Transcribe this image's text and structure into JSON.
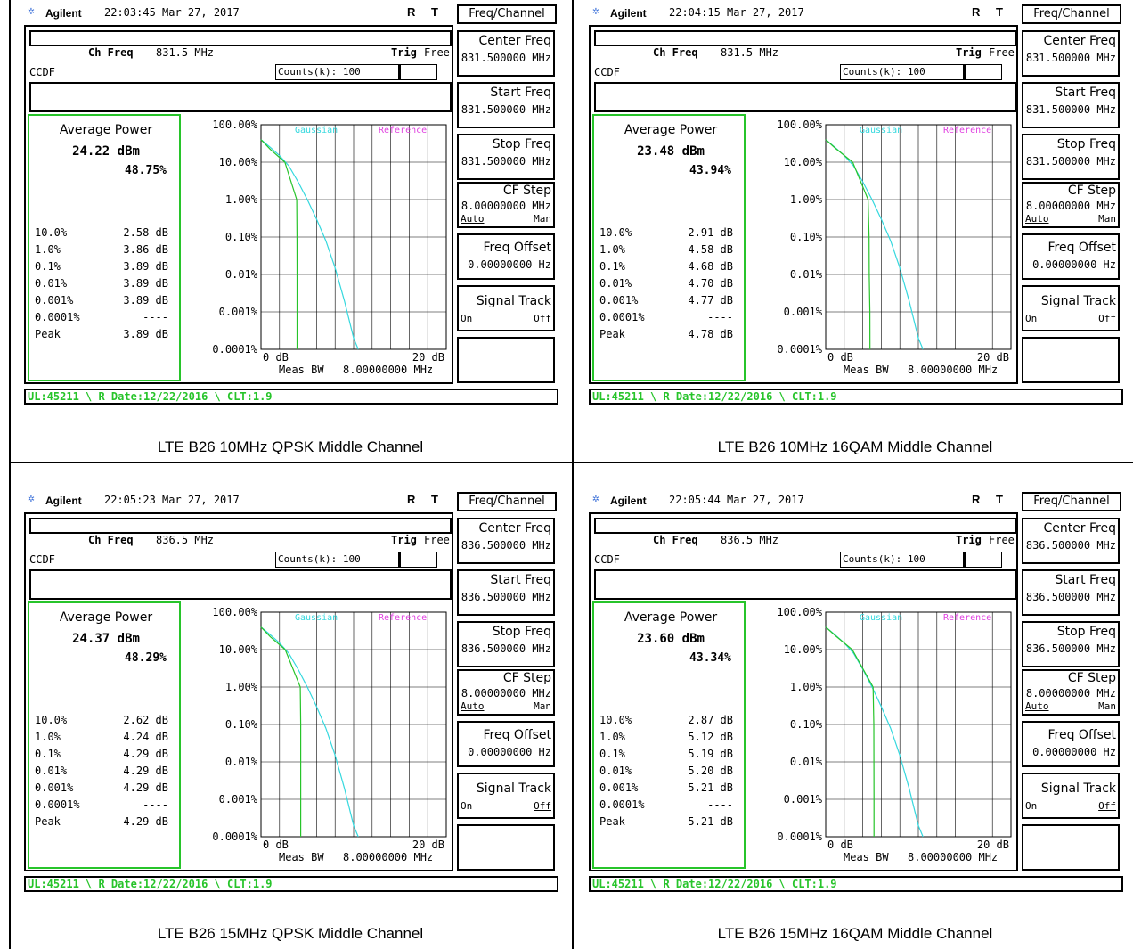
{
  "panels": [
    {
      "caption": "LTE B26 10MHz QPSK Middle Channel",
      "brand": "Agilent",
      "datetime": "22:03:45  Mar 27, 2017",
      "r": "R",
      "t": "T",
      "menu_title": "Freq/Channel",
      "ch_freq_label": "Ch Freq",
      "ch_freq": "831.5 MHz",
      "trig_label": "Trig",
      "trig_value": "Free",
      "mode": "CCDF",
      "counts": "Counts(k): 100",
      "avg_power_label": "Average Power",
      "avg_power": "24.22 dBm",
      "avg_pct": "48.75%",
      "stats": [
        {
          "k": "10.0%",
          "v": "2.58 dB"
        },
        {
          "k": "1.0%",
          "v": "3.86 dB"
        },
        {
          "k": "0.1%",
          "v": "3.89 dB"
        },
        {
          "k": "0.01%",
          "v": "3.89 dB"
        },
        {
          "k": "0.001%",
          "v": "3.89 dB"
        },
        {
          "k": "0.0001%",
          "v": "----"
        },
        {
          "k": "Peak",
          "v": "3.89 dB"
        }
      ],
      "softkeys": {
        "center_freq": "831.500000 MHz",
        "start_freq": "831.500000 MHz",
        "stop_freq": "831.500000 MHz",
        "cf_step": "8.00000000 MHz"
      },
      "status": "UL:45211 \\ R Date:12/22/2016 \\ CLT:1.9"
    },
    {
      "caption": "LTE B26 10MHz 16QAM Middle Channel",
      "brand": "Agilent",
      "datetime": "22:04:15  Mar 27, 2017",
      "r": "R",
      "t": "T",
      "menu_title": "Freq/Channel",
      "ch_freq_label": "Ch Freq",
      "ch_freq": "831.5 MHz",
      "trig_label": "Trig",
      "trig_value": "Free",
      "mode": "CCDF",
      "counts": "Counts(k): 100",
      "avg_power_label": "Average Power",
      "avg_power": "23.48 dBm",
      "avg_pct": "43.94%",
      "stats": [
        {
          "k": "10.0%",
          "v": "2.91 dB"
        },
        {
          "k": "1.0%",
          "v": "4.58 dB"
        },
        {
          "k": "0.1%",
          "v": "4.68 dB"
        },
        {
          "k": "0.01%",
          "v": "4.70 dB"
        },
        {
          "k": "0.001%",
          "v": "4.77 dB"
        },
        {
          "k": "0.0001%",
          "v": "----"
        },
        {
          "k": "Peak",
          "v": "4.78 dB"
        }
      ],
      "softkeys": {
        "center_freq": "831.500000 MHz",
        "start_freq": "831.500000 MHz",
        "stop_freq": "831.500000 MHz",
        "cf_step": "8.00000000 MHz"
      },
      "status": "UL:45211 \\ R Date:12/22/2016 \\ CLT:1.9"
    },
    {
      "caption": "LTE B26 15MHz QPSK Middle Channel",
      "brand": "Agilent",
      "datetime": "22:05:23  Mar 27, 2017",
      "r": "R",
      "t": "T",
      "menu_title": "Freq/Channel",
      "ch_freq_label": "Ch Freq",
      "ch_freq": "836.5 MHz",
      "trig_label": "Trig",
      "trig_value": "Free",
      "mode": "CCDF",
      "counts": "Counts(k): 100",
      "avg_power_label": "Average Power",
      "avg_power": "24.37 dBm",
      "avg_pct": "48.29%",
      "stats": [
        {
          "k": "10.0%",
          "v": "2.62 dB"
        },
        {
          "k": "1.0%",
          "v": "4.24 dB"
        },
        {
          "k": "0.1%",
          "v": "4.29 dB"
        },
        {
          "k": "0.01%",
          "v": "4.29 dB"
        },
        {
          "k": "0.001%",
          "v": "4.29 dB"
        },
        {
          "k": "0.0001%",
          "v": "----"
        },
        {
          "k": "Peak",
          "v": "4.29 dB"
        }
      ],
      "softkeys": {
        "center_freq": "836.500000 MHz",
        "start_freq": "836.500000 MHz",
        "stop_freq": "836.500000 MHz",
        "cf_step": "8.00000000 MHz"
      },
      "status": "UL:45211 \\ R Date:12/22/2016 \\ CLT:1.9"
    },
    {
      "caption": "LTE B26 15MHz 16QAM Middle Channel",
      "brand": "Agilent",
      "datetime": "22:05:44  Mar 27, 2017",
      "r": "R",
      "t": "T",
      "menu_title": "Freq/Channel",
      "ch_freq_label": "Ch Freq",
      "ch_freq": "836.5 MHz",
      "trig_label": "Trig",
      "trig_value": "Free",
      "mode": "CCDF",
      "counts": "Counts(k): 100",
      "avg_power_label": "Average Power",
      "avg_power": "23.60 dBm",
      "avg_pct": "43.34%",
      "stats": [
        {
          "k": "10.0%",
          "v": "2.87 dB"
        },
        {
          "k": "1.0%",
          "v": "5.12 dB"
        },
        {
          "k": "0.1%",
          "v": "5.19 dB"
        },
        {
          "k": "0.01%",
          "v": "5.20 dB"
        },
        {
          "k": "0.001%",
          "v": "5.21 dB"
        },
        {
          "k": "0.0001%",
          "v": "----"
        },
        {
          "k": "Peak",
          "v": "5.21 dB"
        }
      ],
      "softkeys": {
        "center_freq": "836.500000 MHz",
        "start_freq": "836.500000 MHz",
        "stop_freq": "836.500000 MHz",
        "cf_step": "8.00000000 MHz"
      },
      "status": "UL:45211 \\ R Date:12/22/2016 \\ CLT:1.9"
    }
  ],
  "softkey_labels": {
    "center_freq": "Center Freq",
    "start_freq": "Start Freq",
    "stop_freq": "Stop Freq",
    "cf_step": "CF Step",
    "cf_step_auto": "Auto",
    "cf_step_man": "Man",
    "freq_offset": "Freq Offset",
    "freq_offset_value": "0.00000000  Hz",
    "signal_track": "Signal Track",
    "signal_track_on": "On",
    "signal_track_off": "Off"
  },
  "chart_data": [
    {
      "type": "line",
      "y_scale": "log",
      "ylim_pct": [
        0.0001,
        100
      ],
      "xlim_db": [
        0,
        20
      ],
      "y_tick_labels": [
        "100.00%",
        "10.00%",
        "1.00%",
        "0.10%",
        "0.01%",
        "0.001%",
        "0.0001%"
      ],
      "x_tick_labels": [
        "0 dB",
        "20 dB"
      ],
      "x_label": "Meas BW",
      "x_label_value": "8.00000000 MHz",
      "legend": [
        "Gaussian",
        "Reference"
      ],
      "colors": {
        "gaussian": "#35d8de",
        "measured": "#27c42a",
        "legend_reference": "#e040e0",
        "grid": "#000000"
      },
      "series": [
        {
          "name": "Gaussian",
          "points": [
            [
              0,
              40
            ],
            [
              1,
              25
            ],
            [
              2,
              15
            ],
            [
              3,
              8
            ],
            [
              4,
              3
            ],
            [
              5,
              1
            ],
            [
              6,
              0.3
            ],
            [
              7,
              0.08
            ],
            [
              8,
              0.015
            ],
            [
              9,
              0.002
            ],
            [
              10,
              0.0002
            ],
            [
              10.5,
              0.0001
            ]
          ]
        },
        {
          "points": [
            [
              0,
              40
            ],
            [
              1,
              22
            ],
            [
              2.58,
              10
            ],
            [
              3.86,
              1
            ],
            [
              3.88,
              0.1
            ],
            [
              3.89,
              0.01
            ],
            [
              3.89,
              0.0001
            ]
          ]
        }
      ]
    },
    {
      "type": "line",
      "y_scale": "log",
      "ylim_pct": [
        0.0001,
        100
      ],
      "xlim_db": [
        0,
        20
      ],
      "y_tick_labels": [
        "100.00%",
        "10.00%",
        "1.00%",
        "0.10%",
        "0.01%",
        "0.001%",
        "0.0001%"
      ],
      "x_tick_labels": [
        "0 dB",
        "20 dB"
      ],
      "x_label": "Meas BW",
      "x_label_value": "8.00000000 MHz",
      "legend": [
        "Gaussian",
        "Reference"
      ],
      "colors": {
        "gaussian": "#35d8de",
        "measured": "#27c42a",
        "legend_reference": "#e040e0",
        "grid": "#000000"
      },
      "series": [
        {
          "name": "Gaussian",
          "points": [
            [
              0,
              40
            ],
            [
              1,
              25
            ],
            [
              2,
              15
            ],
            [
              3,
              8
            ],
            [
              4,
              3
            ],
            [
              5,
              1
            ],
            [
              6,
              0.3
            ],
            [
              7,
              0.08
            ],
            [
              8,
              0.015
            ],
            [
              9,
              0.002
            ],
            [
              10,
              0.0002
            ],
            [
              10.5,
              0.0001
            ]
          ]
        },
        {
          "points": [
            [
              0,
              40
            ],
            [
              1,
              24
            ],
            [
              2.91,
              10
            ],
            [
              4.58,
              1
            ],
            [
              4.68,
              0.1
            ],
            [
              4.7,
              0.01
            ],
            [
              4.77,
              0.001
            ],
            [
              4.78,
              0.0001
            ]
          ]
        }
      ]
    },
    {
      "type": "line",
      "y_scale": "log",
      "ylim_pct": [
        0.0001,
        100
      ],
      "xlim_db": [
        0,
        20
      ],
      "y_tick_labels": [
        "100.00%",
        "10.00%",
        "1.00%",
        "0.10%",
        "0.01%",
        "0.001%",
        "0.0001%"
      ],
      "x_tick_labels": [
        "0 dB",
        "20 dB"
      ],
      "x_label": "Meas BW",
      "x_label_value": "8.00000000 MHz",
      "legend": [
        "Gaussian",
        "Reference"
      ],
      "colors": {
        "gaussian": "#35d8de",
        "measured": "#27c42a",
        "legend_reference": "#e040e0",
        "grid": "#000000"
      },
      "series": [
        {
          "name": "Gaussian",
          "points": [
            [
              0,
              40
            ],
            [
              1,
              25
            ],
            [
              2,
              15
            ],
            [
              3,
              8
            ],
            [
              4,
              3
            ],
            [
              5,
              1
            ],
            [
              6,
              0.3
            ],
            [
              7,
              0.08
            ],
            [
              8,
              0.015
            ],
            [
              9,
              0.002
            ],
            [
              10,
              0.0002
            ],
            [
              10.5,
              0.0001
            ]
          ]
        },
        {
          "points": [
            [
              0,
              40
            ],
            [
              1,
              22
            ],
            [
              2.62,
              10
            ],
            [
              4.24,
              1
            ],
            [
              4.29,
              0.1
            ],
            [
              4.29,
              0.01
            ],
            [
              4.29,
              0.0001
            ]
          ]
        }
      ]
    },
    {
      "type": "line",
      "y_scale": "log",
      "ylim_pct": [
        0.0001,
        100
      ],
      "xlim_db": [
        0,
        20
      ],
      "y_tick_labels": [
        "100.00%",
        "10.00%",
        "1.00%",
        "0.10%",
        "0.01%",
        "0.001%",
        "0.0001%"
      ],
      "x_tick_labels": [
        "0 dB",
        "20 dB"
      ],
      "x_label": "Meas BW",
      "x_label_value": "8.00000000 MHz",
      "legend": [
        "Gaussian",
        "Reference"
      ],
      "colors": {
        "gaussian": "#35d8de",
        "measured": "#27c42a",
        "legend_reference": "#e040e0",
        "grid": "#000000"
      },
      "series": [
        {
          "name": "Gaussian",
          "points": [
            [
              0,
              40
            ],
            [
              1,
              25
            ],
            [
              2,
              15
            ],
            [
              3,
              8
            ],
            [
              4,
              3
            ],
            [
              5,
              1
            ],
            [
              6,
              0.3
            ],
            [
              7,
              0.08
            ],
            [
              8,
              0.015
            ],
            [
              9,
              0.002
            ],
            [
              10,
              0.0002
            ],
            [
              10.5,
              0.0001
            ]
          ]
        },
        {
          "points": [
            [
              0,
              40
            ],
            [
              1,
              24
            ],
            [
              2.87,
              10
            ],
            [
              5.12,
              1
            ],
            [
              5.19,
              0.1
            ],
            [
              5.2,
              0.01
            ],
            [
              5.21,
              0.001
            ],
            [
              5.21,
              0.0001
            ]
          ]
        }
      ]
    }
  ]
}
